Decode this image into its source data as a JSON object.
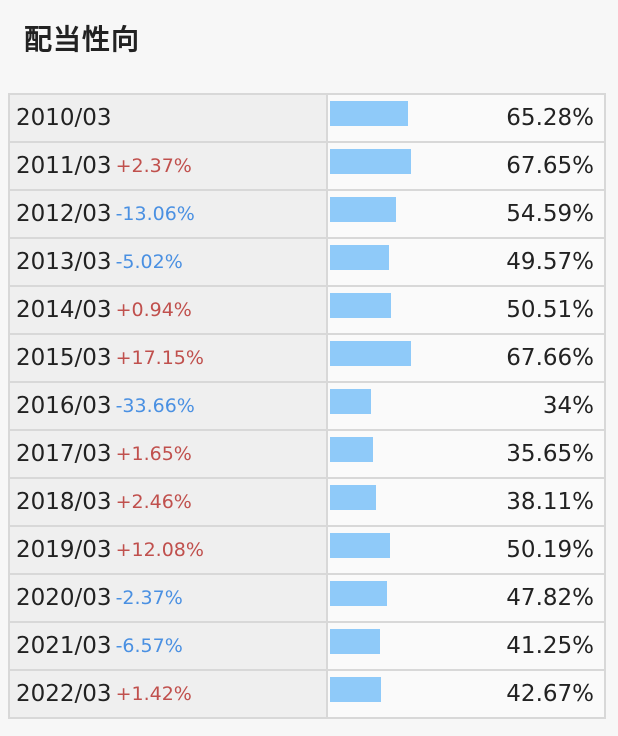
{
  "page": {
    "title": "配当性向"
  },
  "colors": {
    "bar": "#8fcaf9",
    "up": "#c0504d",
    "down": "#4a90e2"
  },
  "chart_data": {
    "type": "bar",
    "orientation": "horizontal",
    "xlim": [
      0,
      100
    ],
    "rows": [
      {
        "year": "2010/03",
        "change": "",
        "direction": "none",
        "value": 65.28,
        "value_label": "65.28%"
      },
      {
        "year": "2011/03",
        "change": "+2.37%",
        "direction": "up",
        "value": 67.65,
        "value_label": "67.65%"
      },
      {
        "year": "2012/03",
        "change": "-13.06%",
        "direction": "down",
        "value": 54.59,
        "value_label": "54.59%"
      },
      {
        "year": "2013/03",
        "change": "-5.02%",
        "direction": "down",
        "value": 49.57,
        "value_label": "49.57%"
      },
      {
        "year": "2014/03",
        "change": "+0.94%",
        "direction": "up",
        "value": 50.51,
        "value_label": "50.51%"
      },
      {
        "year": "2015/03",
        "change": "+17.15%",
        "direction": "up",
        "value": 67.66,
        "value_label": "67.66%"
      },
      {
        "year": "2016/03",
        "change": "-33.66%",
        "direction": "down",
        "value": 34,
        "value_label": "34%"
      },
      {
        "year": "2017/03",
        "change": "+1.65%",
        "direction": "up",
        "value": 35.65,
        "value_label": "35.65%"
      },
      {
        "year": "2018/03",
        "change": "+2.46%",
        "direction": "up",
        "value": 38.11,
        "value_label": "38.11%"
      },
      {
        "year": "2019/03",
        "change": "+12.08%",
        "direction": "up",
        "value": 50.19,
        "value_label": "50.19%"
      },
      {
        "year": "2020/03",
        "change": "-2.37%",
        "direction": "down",
        "value": 47.82,
        "value_label": "47.82%"
      },
      {
        "year": "2021/03",
        "change": "-6.57%",
        "direction": "down",
        "value": 41.25,
        "value_label": "41.25%"
      },
      {
        "year": "2022/03",
        "change": "+1.42%",
        "direction": "up",
        "value": 42.67,
        "value_label": "42.67%"
      }
    ]
  }
}
